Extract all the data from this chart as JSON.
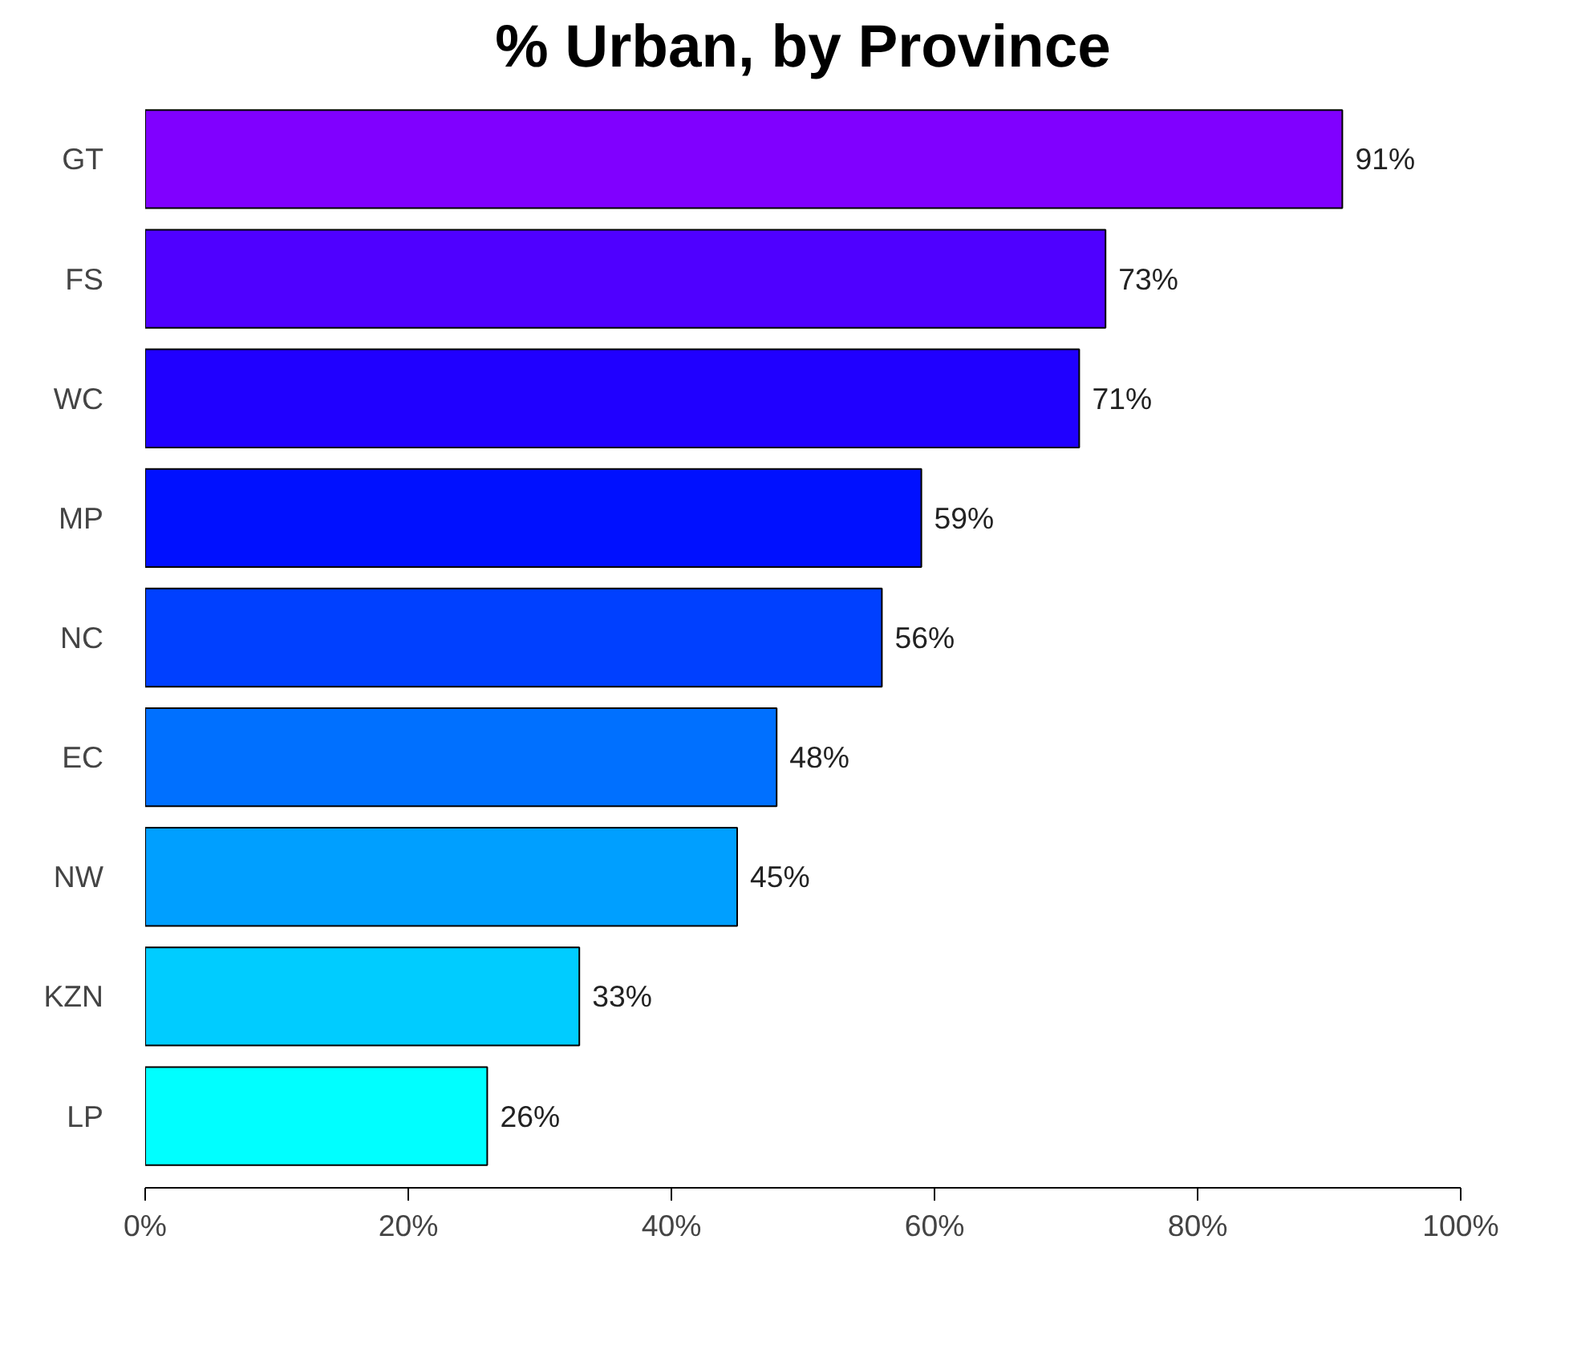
{
  "chart_data": {
    "type": "bar",
    "orientation": "horizontal",
    "title": "% Urban, by Province",
    "categories": [
      "GT",
      "FS",
      "WC",
      "MP",
      "NC",
      "EC",
      "NW",
      "KZN",
      "LP"
    ],
    "values": [
      91,
      73,
      71,
      59,
      56,
      48,
      45,
      33,
      26
    ],
    "colors": [
      "#8000ff",
      "#4f00ff",
      "#2000ff",
      "#0010ff",
      "#0040ff",
      "#0070ff",
      "#009fff",
      "#00ccff",
      "#00ffff"
    ],
    "value_labels": [
      "91%",
      "73%",
      "71%",
      "59%",
      "56%",
      "48%",
      "45%",
      "33%",
      "26%"
    ],
    "xlim": [
      0,
      100
    ],
    "xticks": [
      {
        "value": 0,
        "label": "0%"
      },
      {
        "value": 20,
        "label": "20%"
      },
      {
        "value": 40,
        "label": "40%"
      },
      {
        "value": 60,
        "label": "60%"
      },
      {
        "value": 80,
        "label": "80%"
      },
      {
        "value": 100,
        "label": "100%"
      }
    ],
    "grid": false
  }
}
